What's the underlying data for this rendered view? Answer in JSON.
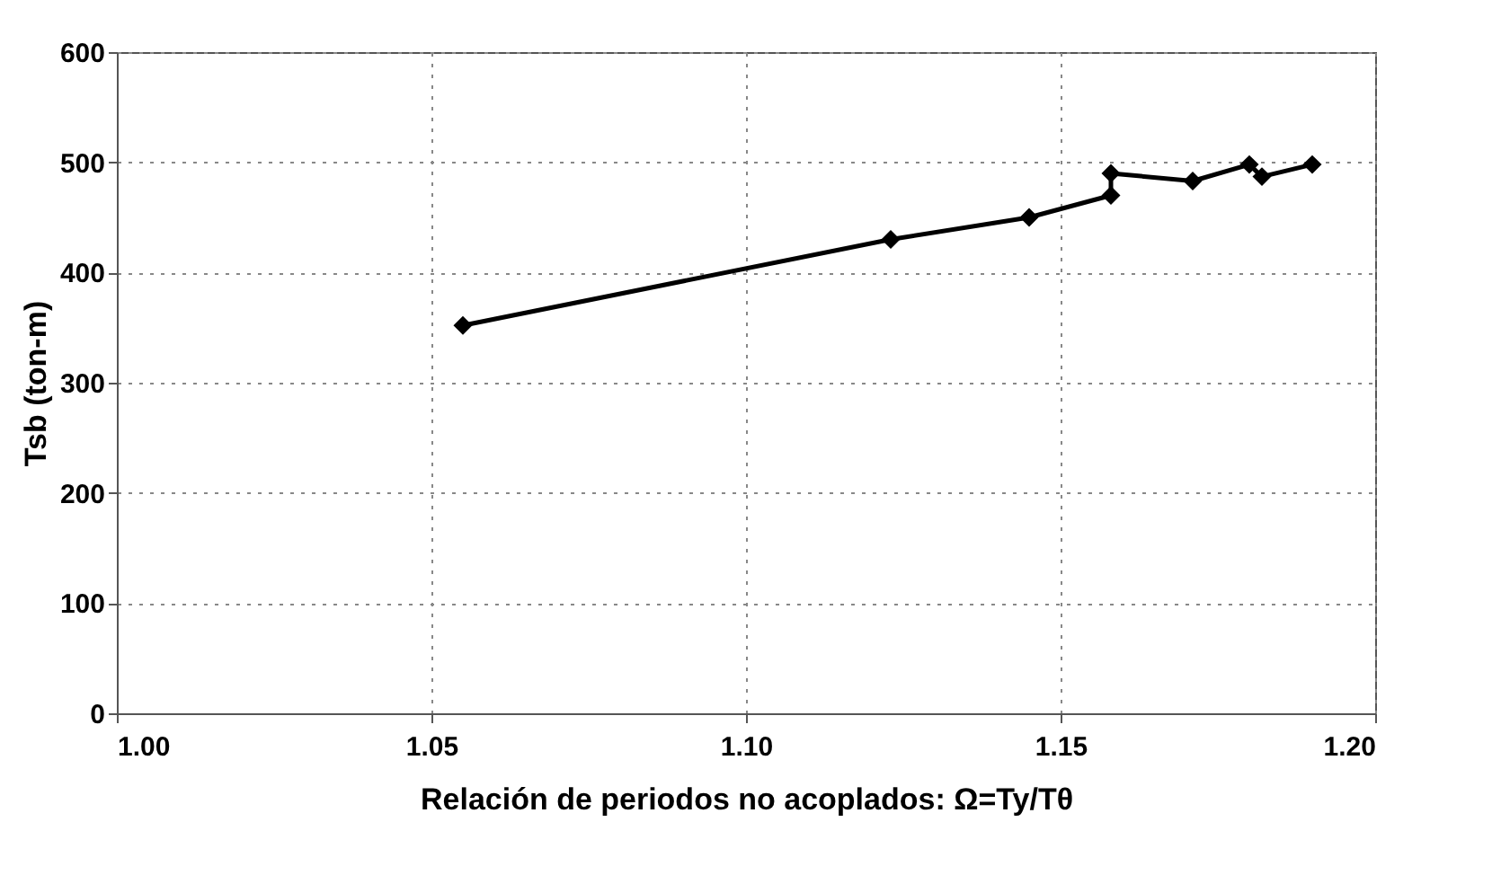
{
  "chart_data": {
    "type": "line",
    "xlabel": "Relación de periodos no acoplados: Ω=Ty/Tθ",
    "ylabel": "Tsb (ton-m)",
    "series": [
      {
        "color": "#000000",
        "x": [
          1.055,
          1.123,
          1.145,
          1.158,
          1.158,
          1.171,
          1.18,
          1.182,
          1.19
        ],
        "values": [
          352,
          430,
          450,
          470,
          490,
          483,
          498,
          487,
          498
        ]
      }
    ],
    "xlim": [
      1.0,
      1.2
    ],
    "xticks": [
      {
        "value": 1.0,
        "label": "1.00"
      },
      {
        "value": 1.05,
        "label": "1.05"
      },
      {
        "value": 1.1,
        "label": "1.10"
      },
      {
        "value": 1.15,
        "label": "1.15"
      },
      {
        "value": 1.2,
        "label": "1.20"
      }
    ],
    "ylim": [
      0,
      600
    ],
    "yticks": [
      0,
      100,
      200,
      300,
      400,
      500,
      600
    ],
    "grid": true,
    "marker": "diamond",
    "line_style": "solid"
  }
}
